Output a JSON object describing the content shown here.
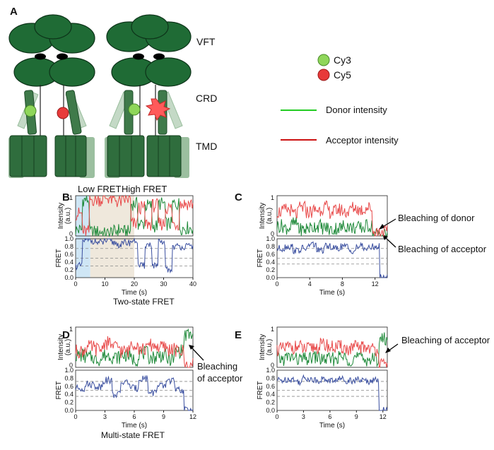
{
  "panel_a": {
    "label": "A",
    "domains": [
      "VFT",
      "CRD",
      "TMD"
    ],
    "legend": {
      "dyes": [
        {
          "name": "Cy3",
          "color": "#7dc742"
        },
        {
          "name": "Cy5",
          "color": "#e23a3a"
        }
      ],
      "lines": [
        {
          "name": "Donor intensity",
          "color": "#22cc22"
        },
        {
          "name": "Acceptor intensity",
          "color": "#cc1111"
        }
      ]
    },
    "colors": {
      "protein_dark": "#1f6b35",
      "protein_light": "#9bbf9f"
    }
  },
  "panels": {
    "B": {
      "label": "B",
      "region_labels": [
        "Low FRET",
        "High FRET"
      ],
      "caption": "Two-state FRET"
    },
    "C": {
      "label": "C",
      "annotations": [
        "Bleaching of donor",
        "Bleaching of acceptor"
      ]
    },
    "D": {
      "label": "D",
      "annotations": [
        "Bleaching",
        "of acceptor"
      ],
      "caption": "Multi-state FRET"
    },
    "E": {
      "label": "E",
      "annotations": [
        "Bleaching of acceptor"
      ]
    }
  },
  "chart_data": [
    {
      "panel": "B",
      "type": "line",
      "xlabel": "Time (s)",
      "xlim": [
        0,
        40
      ],
      "xticks": [
        "0",
        "10",
        "20",
        "30",
        "40"
      ],
      "intensity": {
        "ylabel_lines": [
          "Intensity",
          "(a.u.)"
        ],
        "ylim": [
          0,
          1
        ],
        "yticks": [
          "0",
          "1"
        ],
        "series": [
          {
            "color": "#1f8a3a",
            "values": [
              0.15,
              0.9,
              0.1,
              0.1,
              0.05,
              0.1,
              0.15,
              0.1,
              0.8,
              0.3,
              0.75,
              0.25,
              0.8,
              0.3,
              0.8,
              0.2,
              0.2
            ]
          },
          {
            "color": "#e84a4a",
            "values": [
              0.55,
              0.1,
              0.9,
              0.9,
              0.95,
              0.9,
              0.85,
              0.9,
              0.3,
              0.7,
              0.3,
              0.75,
              0.3,
              0.7,
              0.3,
              0.8,
              0.8
            ]
          }
        ]
      },
      "fret": {
        "ylabel": "FRET",
        "ylim": [
          0,
          1
        ],
        "yticks": [
          "0.0",
          "0.2",
          "0.4",
          "0.6",
          "0.8",
          "1.0"
        ],
        "dashed_levels": [
          0.3,
          0.5,
          0.75
        ],
        "values": [
          0.3,
          0.95,
          0.95,
          0.9,
          0.95,
          0.9,
          0.85,
          0.9,
          0.95,
          0.3,
          0.85,
          0.3,
          0.9,
          0.2,
          0.8,
          0.8,
          0.8
        ]
      },
      "shaded_regions": [
        {
          "x": [
            0,
            5
          ],
          "color": "#cfe6f5"
        },
        {
          "x": [
            5,
            20
          ],
          "color": "#efe8dc"
        }
      ]
    },
    {
      "panel": "C",
      "type": "line",
      "xlabel": "Time (s)",
      "xlim": [
        0,
        13.5
      ],
      "xticks": [
        "0",
        "4",
        "8",
        "12"
      ],
      "intensity": {
        "ylabel_lines": [
          "Intensity",
          "(a.u.)"
        ],
        "ylim": [
          0,
          1
        ],
        "yticks": [
          "0",
          "1"
        ],
        "series": [
          {
            "color": "#1f8a3a",
            "values": [
              0.25,
              0.2,
              0.3,
              0.15,
              0.2,
              0.25,
              0.2,
              0.15,
              0.2,
              0.25,
              0.2,
              0.2,
              0.25,
              0.05,
              0.05
            ]
          },
          {
            "color": "#e84a4a",
            "values": [
              0.6,
              0.65,
              0.55,
              0.7,
              0.6,
              0.65,
              0.7,
              0.6,
              0.65,
              0.6,
              0.7,
              0.65,
              0.7,
              0.1,
              0.1
            ]
          }
        ]
      },
      "fret": {
        "ylabel": "FRET",
        "ylim": [
          0,
          1
        ],
        "yticks": [
          "0.0",
          "0.2",
          "0.4",
          "0.6",
          "0.8",
          "1.0"
        ],
        "dashed_levels": [
          0.35,
          0.5,
          0.75
        ],
        "values": [
          0.75,
          0.8,
          0.7,
          0.75,
          0.85,
          0.7,
          0.8,
          0.75,
          0.8,
          0.7,
          0.8,
          0.75,
          0.8,
          0.0
        ]
      }
    },
    {
      "panel": "D",
      "type": "line",
      "xlabel": "Time (s)",
      "xlim": [
        0,
        12
      ],
      "xticks": [
        "0",
        "3",
        "6",
        "9",
        "12"
      ],
      "intensity": {
        "ylabel_lines": [
          "Intensity",
          "(a.u.)"
        ],
        "ylim": [
          0,
          1
        ],
        "yticks": [
          "0",
          "1"
        ],
        "series": [
          {
            "color": "#1f8a3a",
            "values": [
              0.3,
              0.25,
              0.2,
              0.3,
              0.25,
              0.3,
              0.2,
              0.35,
              0.25,
              0.3,
              0.2,
              0.4,
              0.8
            ]
          },
          {
            "color": "#e84a4a",
            "values": [
              0.4,
              0.5,
              0.45,
              0.6,
              0.5,
              0.4,
              0.6,
              0.45,
              0.55,
              0.5,
              0.45,
              0.4,
              0.05
            ]
          }
        ]
      },
      "fret": {
        "ylabel": "FRET",
        "ylim": [
          0,
          1
        ],
        "yticks": [
          "0.0",
          "0.2",
          "0.4",
          "0.6",
          "0.8",
          "1.0"
        ],
        "dashed_levels": [
          0.35,
          0.5,
          0.72
        ],
        "values": [
          0.55,
          0.65,
          0.6,
          0.75,
          0.4,
          0.7,
          0.55,
          0.8,
          0.45,
          0.6,
          0.75,
          0.5,
          0.0
        ]
      }
    },
    {
      "panel": "E",
      "type": "line",
      "xlabel": "Time (s)",
      "xlim": [
        0,
        12.5
      ],
      "xticks": [
        "0",
        "3",
        "6",
        "9",
        "12"
      ],
      "intensity": {
        "ylabel_lines": [
          "Intensity",
          "(a.u.)"
        ],
        "ylim": [
          0,
          1
        ],
        "yticks": [
          "0",
          "1"
        ],
        "series": [
          {
            "color": "#1f8a3a",
            "values": [
              0.2,
              0.25,
              0.2,
              0.2,
              0.25,
              0.2,
              0.2,
              0.25,
              0.2,
              0.25,
              0.2,
              0.2,
              0.7
            ]
          },
          {
            "color": "#e84a4a",
            "values": [
              0.45,
              0.5,
              0.5,
              0.45,
              0.5,
              0.55,
              0.5,
              0.5,
              0.45,
              0.5,
              0.5,
              0.45,
              0.05
            ]
          }
        ]
      },
      "fret": {
        "ylabel": "FRET",
        "ylim": [
          0,
          1
        ],
        "yticks": [
          "0.0",
          "0.2",
          "0.4",
          "0.6",
          "0.8",
          "1.0"
        ],
        "dashed_levels": [
          0.35,
          0.5,
          0.72
        ],
        "values": [
          0.75,
          0.78,
          0.72,
          0.8,
          0.75,
          0.77,
          0.74,
          0.78,
          0.75,
          0.76,
          0.73,
          0.75,
          0.0
        ]
      }
    }
  ]
}
